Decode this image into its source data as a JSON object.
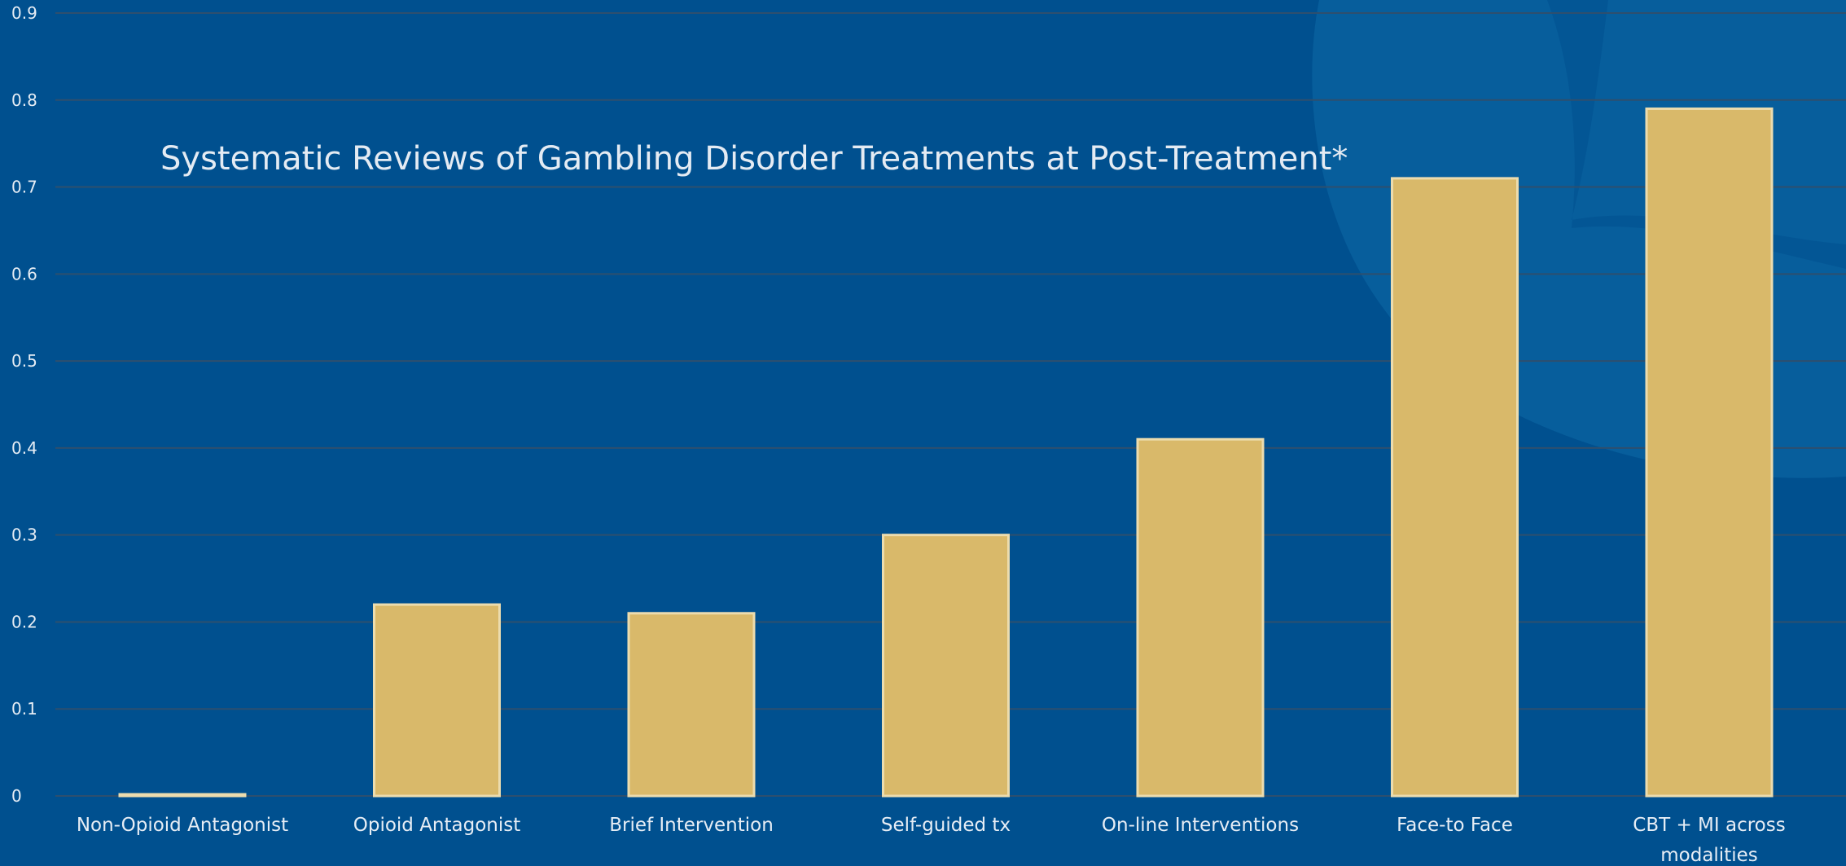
{
  "colors": {
    "background": "#00508f",
    "bar": "#d9b96a",
    "text": "#e6edf5"
  },
  "chart_data": {
    "type": "bar",
    "title": "Systematic Reviews of Gambling Disorder Treatments at Post-Treatment*",
    "categories": [
      [
        "Non-Opioid Antagonist"
      ],
      [
        "Opioid Antagonist"
      ],
      [
        "Brief Intervention"
      ],
      [
        "Self-guided tx"
      ],
      [
        "On-line Interventions"
      ],
      [
        "Face-to Face"
      ],
      [
        "CBT + MI across",
        "modalities"
      ]
    ],
    "values": [
      0,
      0.22,
      0.21,
      0.3,
      0.41,
      0.71,
      0.79
    ],
    "yticks": [
      "0",
      "0.1",
      "0.2",
      "0.3",
      "0.4",
      "0.5",
      "0.6",
      "0.7",
      "0.8",
      "0.9"
    ],
    "ylim": [
      0,
      0.9
    ],
    "grid": true,
    "legend": "none"
  }
}
